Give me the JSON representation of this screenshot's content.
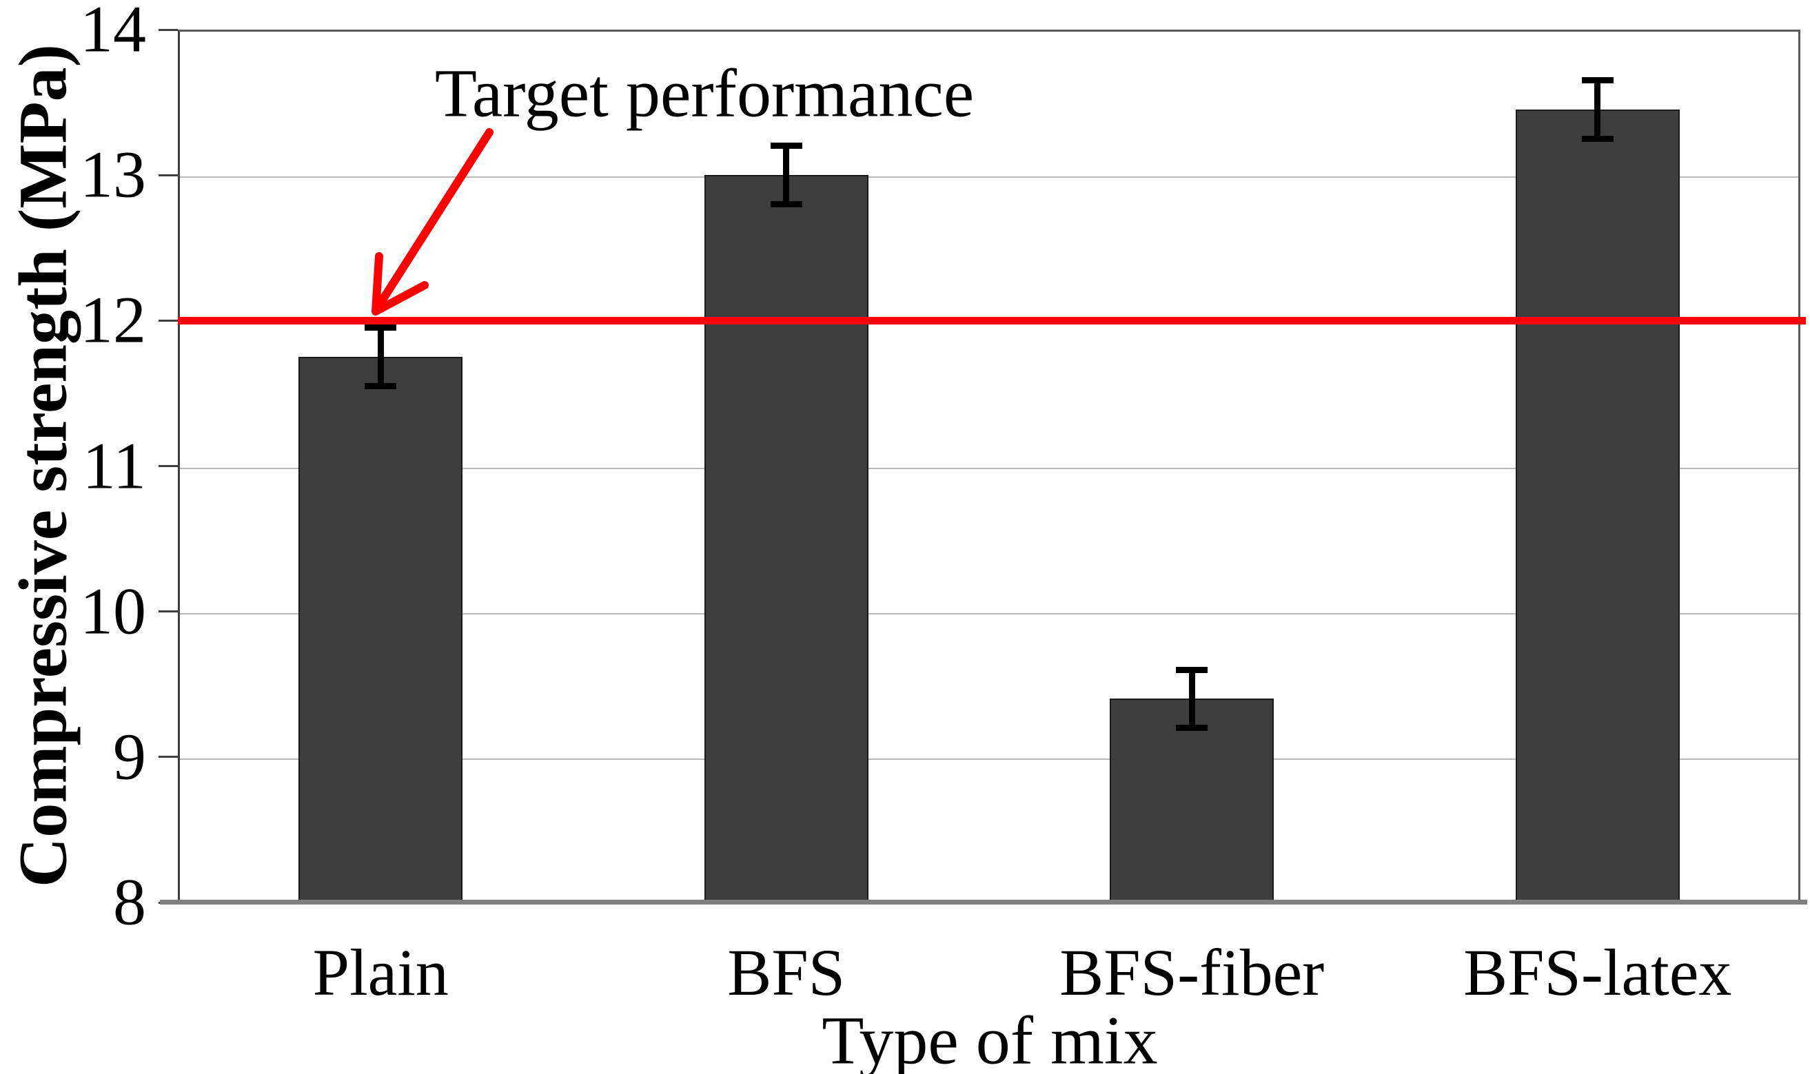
{
  "chart_data": {
    "type": "bar",
    "title": "",
    "categories": [
      "Plain",
      "BFS",
      "BFS-fiber",
      "BFS-latex"
    ],
    "values": [
      11.75,
      13.0,
      9.4,
      13.45
    ],
    "error_bars_plus_minus": [
      0.2,
      0.2,
      0.2,
      0.2
    ],
    "xlabel": "Type of mix",
    "ylabel": "Compressive strength (MPa)",
    "ylim": [
      8,
      14
    ],
    "yticks": [
      8,
      9,
      10,
      11,
      12,
      13,
      14
    ],
    "grid": "horizontal-light",
    "legend": "none",
    "annotation": {
      "text": "Target performance",
      "points_to": "reference line at 12 MPa"
    },
    "reference_line": {
      "value": 12,
      "color": "#ff0000"
    },
    "colors": {
      "bar": "#3e3e3e",
      "bar_border": "#1a1a1a",
      "gridline": "#b9b9b9",
      "axis": "#3f3f3f",
      "bottom_axis": "#7f7f7f",
      "error_bar": "#000000",
      "text": "#000000",
      "background": "#ffffff"
    }
  }
}
